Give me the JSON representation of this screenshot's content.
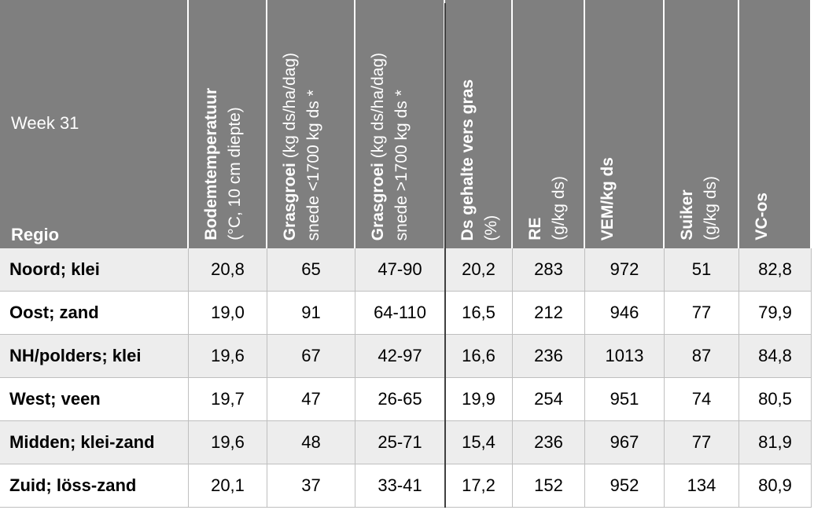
{
  "header": {
    "week": "Week 31",
    "region_label": "Regio",
    "columns": [
      {
        "title": "Bodemtemperatuur",
        "subtitle": "(°C, 10 cm diepte)"
      },
      {
        "title": "Grasgroei",
        "title_extra": "(kg ds/ha/dag)",
        "subtitle": "snede <1700 kg ds *"
      },
      {
        "title": "Grasgroei",
        "title_extra": "(kg ds/ha/dag)",
        "subtitle": "snede >1700 kg ds *"
      },
      {
        "title": "Ds gehalte vers gras",
        "subtitle": "(%)"
      },
      {
        "title": "RE",
        "subtitle": "(g/kg ds)"
      },
      {
        "title": "VEM/kg ds"
      },
      {
        "title": "Suiker",
        "subtitle": "(g/kg ds)"
      },
      {
        "title": "VC-os"
      }
    ]
  },
  "rows": [
    {
      "region": "Noord; klei",
      "values": [
        "20,8",
        "65",
        "47-90",
        "20,2",
        "283",
        "972",
        "51",
        "82,8"
      ]
    },
    {
      "region": "Oost; zand",
      "values": [
        "19,0",
        "91",
        "64-110",
        "16,5",
        "212",
        "946",
        "77",
        "79,9"
      ]
    },
    {
      "region": "NH/polders; klei",
      "values": [
        "19,6",
        "67",
        "42-97",
        "16,6",
        "236",
        "1013",
        "87",
        "84,8"
      ]
    },
    {
      "region": "West; veen",
      "values": [
        "19,7",
        "47",
        "26-65",
        "19,9",
        "254",
        "951",
        "74",
        "80,5"
      ]
    },
    {
      "region": "Midden; klei-zand",
      "values": [
        "19,6",
        "48",
        "25-71",
        "15,4",
        "236",
        "967",
        "77",
        "81,9"
      ]
    },
    {
      "region": "Zuid; löss-zand",
      "values": [
        "20,1",
        "37",
        "33-41",
        "17,2",
        "152",
        "952",
        "134",
        "80,9"
      ]
    }
  ]
}
